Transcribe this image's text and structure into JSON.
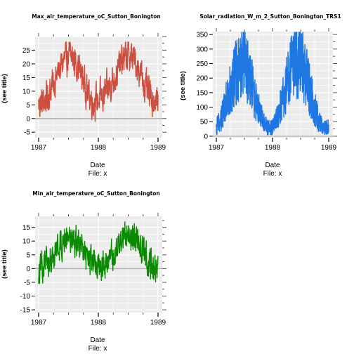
{
  "chart_data": [
    {
      "type": "line",
      "title": "Max_air_temperature_oC_Sutton_Bonington",
      "ylabel": "(see title)",
      "xlabel": "Date",
      "xsublabel": "File: x",
      "x_start": "1987-01-01",
      "x_end": "1989-01-01",
      "x_ticks": [
        "1987",
        "1988",
        "1989"
      ],
      "ylim": [
        -7,
        30
      ],
      "y_ticks": [
        -5,
        0,
        5,
        10,
        15,
        20,
        25
      ],
      "color": "#cd4f3f",
      "baseline": 0,
      "monthly_mean": [
        5,
        6,
        9,
        13,
        17,
        21,
        23,
        22,
        19,
        14,
        9,
        6,
        7,
        8,
        11,
        14,
        18,
        22,
        23,
        22,
        19,
        14,
        9,
        7,
        6
      ],
      "amplitude": 4.5
    },
    {
      "type": "line",
      "title": "Solar_radiation_W_m_2_Sutton_Bonington_TRS1",
      "ylabel": "(see title)",
      "xlabel": "Date",
      "xsublabel": "File: x",
      "x_start": "1987-01-01",
      "x_end": "1989-01-01",
      "x_ticks": [
        "1987",
        "1988",
        "1989"
      ],
      "ylim": [
        -5,
        360
      ],
      "y_ticks": [
        0,
        50,
        100,
        150,
        200,
        250,
        300,
        350
      ],
      "color": "#1f77e4",
      "baseline": 0,
      "monthly_mean": [
        22,
        45,
        90,
        140,
        185,
        210,
        205,
        175,
        125,
        75,
        35,
        18,
        20,
        48,
        95,
        150,
        195,
        225,
        215,
        180,
        130,
        78,
        35,
        16,
        20
      ],
      "amplitude": 60
    },
    {
      "type": "line",
      "title": "Min_air_temperature_oC_Sutton_Bonington",
      "ylabel": "(see title)",
      "xlabel": "Date",
      "xsublabel": "File: x",
      "x_start": "1987-01-01",
      "x_end": "1989-01-01",
      "x_ticks": [
        "1987",
        "1988",
        "1989"
      ],
      "ylim": [
        -16,
        19
      ],
      "y_ticks": [
        -15,
        -10,
        -5,
        0,
        5,
        10,
        15
      ],
      "color": "#0a8a00",
      "baseline": 0,
      "monthly_mean": [
        -2,
        1,
        2,
        5,
        8,
        11,
        12,
        11,
        9,
        6,
        3,
        1,
        2,
        2,
        3,
        5,
        8,
        11,
        12,
        12,
        10,
        7,
        3,
        1,
        1
      ],
      "amplitude": 4
    }
  ]
}
